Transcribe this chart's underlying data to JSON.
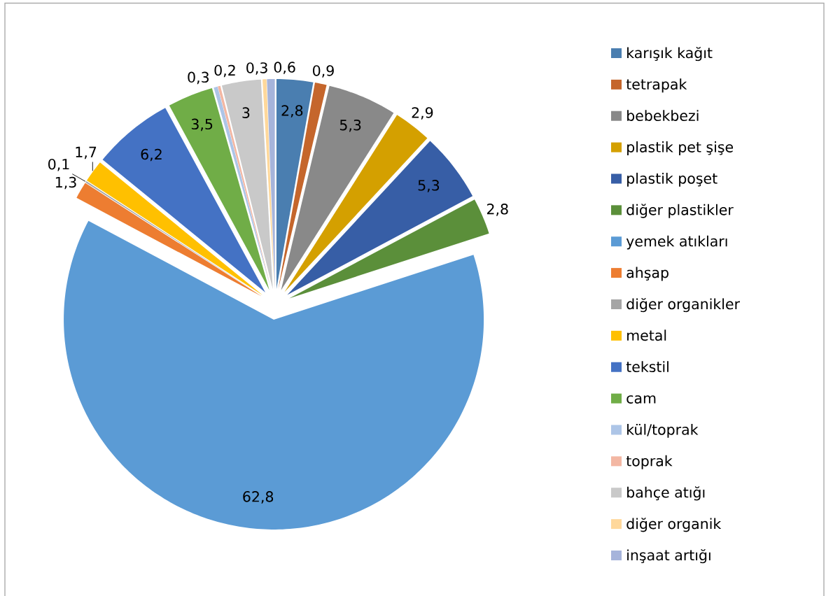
{
  "chart_data": {
    "type": "pie",
    "categories": [
      "karışık kağıt",
      "tetrapak",
      "bebekbezi",
      "plastik pet şişe",
      "plastik poşet",
      "diğer plastikler",
      "yemek atıkları",
      "ahşap",
      "diğer organikler",
      "metal",
      "tekstil",
      "cam",
      "kül/toprak",
      "toprak",
      "bahçe atığı",
      "diğer organik",
      "inşaat artığı"
    ],
    "values": [
      2.8,
      0.9,
      5.3,
      2.9,
      5.3,
      2.8,
      62.8,
      1.3,
      0.1,
      1.7,
      6.2,
      3.5,
      0.3,
      0.2,
      3,
      0.3,
      0.6
    ],
    "colors": [
      "#4a7eb0",
      "#c5662c",
      "#898989",
      "#d4a000",
      "#375ea6",
      "#5b8f3a",
      "#5b9bd5",
      "#ed7d31",
      "#a5a5a5",
      "#ffc000",
      "#4472c4",
      "#70ad47",
      "#adc5e7",
      "#f3b7a3",
      "#c9c9c9",
      "#ffd89b",
      "#a6b4db"
    ],
    "value_labels": [
      "2,8",
      "0,9",
      "5,3",
      "2,9",
      "5,3",
      "2,8",
      "62,8",
      "1,3",
      "0,1",
      "1,7",
      "6,2",
      "3,5",
      "0,3",
      "0,2",
      "3",
      "0,3",
      "0,6"
    ],
    "legend": "right"
  }
}
